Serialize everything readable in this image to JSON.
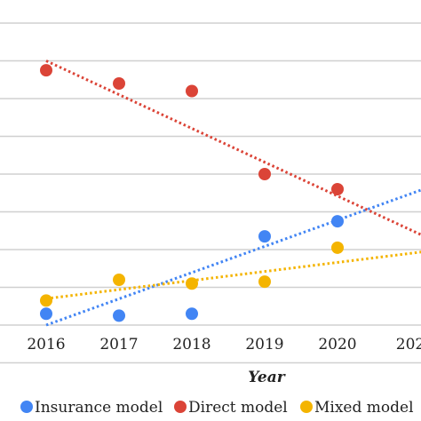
{
  "chart_data": {
    "type": "scatter",
    "xlabel": "Year",
    "ylabel": "",
    "x": [
      2016,
      2017,
      2018,
      2019,
      2020
    ],
    "x_tick_labels": [
      "2016",
      "2017",
      "2018",
      "2019",
      "2020",
      "202"
    ],
    "grid": true,
    "legend_position": "bottom",
    "trendlines": "linear, dotted",
    "series": [
      {
        "name": "Insurance model",
        "color": "#4285f4",
        "values": [
          0.3,
          0.25,
          0.3,
          2.35,
          2.75
        ],
        "trend_start": 0.0,
        "trend_slope": 0.695
      },
      {
        "name": "Direct model",
        "color": "#db4437",
        "values": [
          6.75,
          6.4,
          6.2,
          4.0,
          3.6
        ],
        "trend_start": 7.0,
        "trend_slope": -0.895
      },
      {
        "name": "Mixed model",
        "color": "#f4b400",
        "values": [
          0.65,
          1.2,
          1.1,
          1.15,
          2.05
        ],
        "trend_start": 0.7,
        "trend_slope": 0.24
      }
    ]
  }
}
